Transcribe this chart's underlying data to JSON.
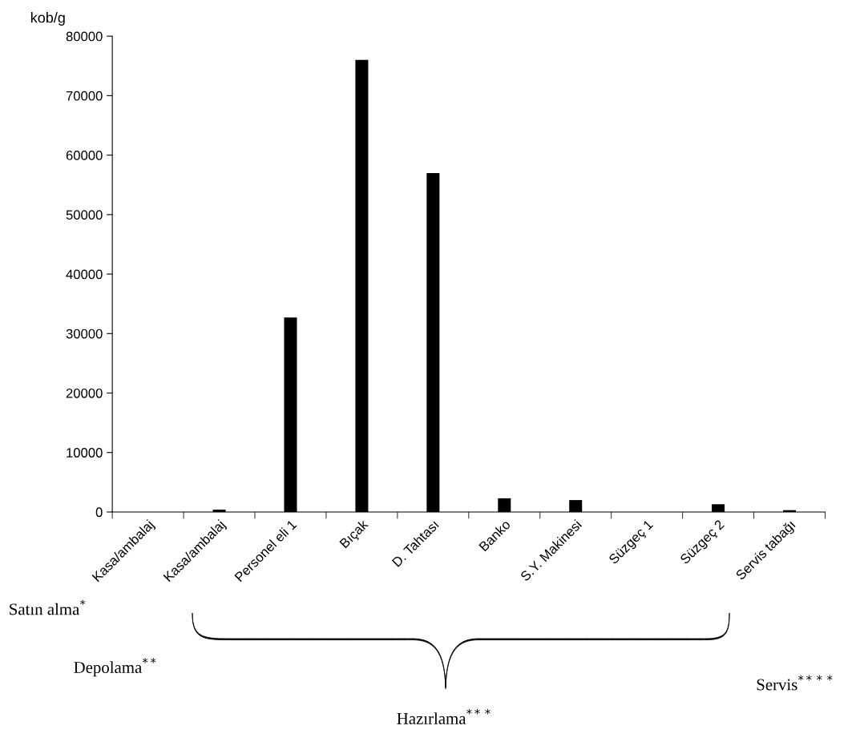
{
  "chart_data": {
    "type": "bar",
    "ylabel": "kob/g",
    "categories": [
      "Kasa/ambalaj",
      "Kasa/ambalaj",
      "Personel eli 1",
      "Bıçak",
      "D. Tahtası",
      "Banko",
      "S.Y. Makinesi",
      "Süzgeç 1",
      "Süzgeç 2",
      "Servis tabağı"
    ],
    "values": [
      0,
      400,
      32700,
      76000,
      57000,
      2300,
      2000,
      0,
      1300,
      300
    ],
    "color": "#000000",
    "ylim": [
      0,
      80000
    ],
    "yticks": [
      0,
      10000,
      20000,
      30000,
      40000,
      50000,
      60000,
      70000,
      80000
    ],
    "grid": false,
    "legend": false,
    "annotations": [
      "Satın alma$^{*}$",
      "Depolama$^{**}$",
      "Hazırlama$^{***}$",
      "Servis$^{****}$"
    ]
  }
}
